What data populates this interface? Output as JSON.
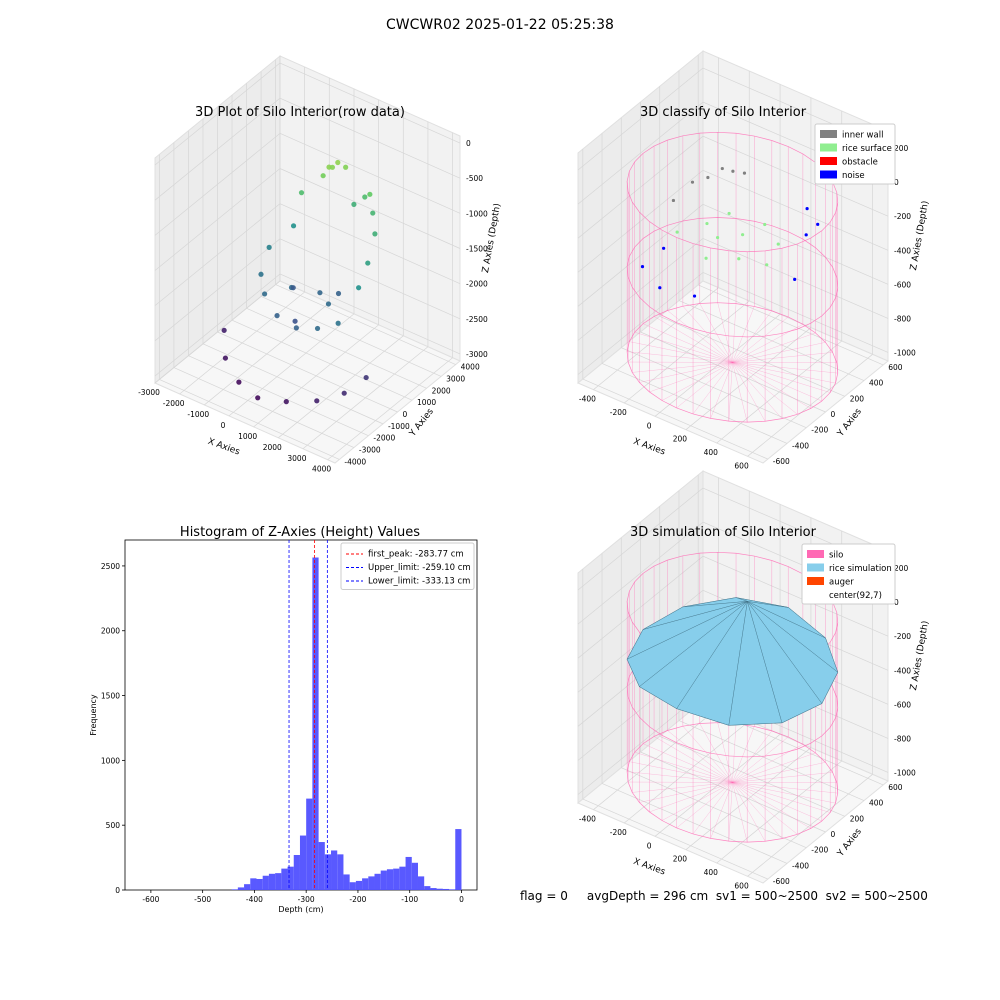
{
  "figure": {
    "suptitle": "CWCWR02 2025-01-22 05:25:38",
    "footer": "flag = 0     avgDepth = 296 cm  sv1 = 500~2500  sv2 = 500~2500"
  },
  "chart_data": [
    {
      "type": "scatter",
      "projection": "3d",
      "title": "3D Plot of Silo Interior(row data)",
      "xlabel": "X Axies",
      "ylabel": "Y Axies",
      "zlabel": "Z Axies (Depth)",
      "xticks": [
        -3000,
        -2000,
        -1000,
        0,
        1000,
        2000,
        3000,
        4000
      ],
      "yticks": [
        -4000,
        -3000,
        -2000,
        -1000,
        0,
        1000,
        2000,
        3000,
        4000
      ],
      "zticks": [
        -3000,
        -2500,
        -2000,
        -1500,
        -1000,
        -500,
        0
      ],
      "xlim": [
        -3000,
        4300
      ],
      "ylim": [
        -4300,
        4300
      ],
      "zlim": [
        -3100,
        100
      ],
      "colormap": "viridis",
      "points": [
        {
          "x": 600,
          "y": 1800,
          "z": -500
        },
        {
          "x": 700,
          "y": 2000,
          "z": -450
        },
        {
          "x": 400,
          "y": 1500,
          "z": -600
        },
        {
          "x": 900,
          "y": 2200,
          "z": -520
        },
        {
          "x": 550,
          "y": 1650,
          "z": -480
        },
        {
          "x": 1500,
          "y": 2500,
          "z": -900
        },
        {
          "x": 2000,
          "y": 2200,
          "z": -1000
        },
        {
          "x": 2500,
          "y": 1500,
          "z": -1100
        },
        {
          "x": 2800,
          "y": 500,
          "z": -1300
        },
        {
          "x": 2900,
          "y": -300,
          "z": -1500
        },
        {
          "x": 1000,
          "y": 2600,
          "z": -1100
        },
        {
          "x": -800,
          "y": 1500,
          "z": -1500
        },
        {
          "x": -1200,
          "y": 500,
          "z": -1700
        },
        {
          "x": -1000,
          "y": -400,
          "z": -1900
        },
        {
          "x": -500,
          "y": -1000,
          "z": -2000
        },
        {
          "x": 300,
          "y": -1500,
          "z": -2100
        },
        {
          "x": 1200,
          "y": -1700,
          "z": -2100
        },
        {
          "x": 2000,
          "y": -1600,
          "z": -2000
        },
        {
          "x": 2600,
          "y": -1200,
          "z": -1900
        },
        {
          "x": 0,
          "y": 0,
          "z": -2000
        },
        {
          "x": 800,
          "y": 600,
          "z": -2050
        },
        {
          "x": 1500,
          "y": 0,
          "z": -2000
        },
        {
          "x": -400,
          "y": 800,
          "z": -2200
        },
        {
          "x": 500,
          "y": -600,
          "z": -2300
        },
        {
          "x": 1200,
          "y": 1200,
          "z": -2100
        },
        {
          "x": -1500,
          "y": -2000,
          "z": -2900
        },
        {
          "x": -600,
          "y": -2600,
          "z": -3000
        },
        {
          "x": 400,
          "y": -3000,
          "z": -3000
        },
        {
          "x": 1500,
          "y": -2900,
          "z": -2900
        },
        {
          "x": 2500,
          "y": -2500,
          "z": -2800
        },
        {
          "x": 3200,
          "y": -1800,
          "z": -2700
        },
        {
          "x": 3500,
          "y": -800,
          "z": -2600
        },
        {
          "x": -2200,
          "y": -900,
          "z": -2800
        },
        {
          "x": 2000,
          "y": 2000,
          "z": -700
        },
        {
          "x": -300,
          "y": 1200,
          "z": -900
        }
      ]
    },
    {
      "type": "scatter",
      "projection": "3d",
      "title": "3D classify of Silo Interior",
      "xlabel": "X Axies",
      "ylabel": "Y Axies",
      "zlabel": "Z Axies (Depth)",
      "xticks": [
        -400,
        -200,
        0,
        200,
        400,
        600
      ],
      "yticks": [
        -600,
        -400,
        -200,
        0,
        200,
        400,
        600
      ],
      "zticks": [
        -1000,
        -800,
        -600,
        -400,
        -200,
        0,
        200
      ],
      "xlim": [
        -500,
        700
      ],
      "ylim": [
        -650,
        650
      ],
      "zlim": [
        -1050,
        300
      ],
      "legend_position": "top-right",
      "series": [
        {
          "name": "inner wall",
          "color": "#808080",
          "points": [
            {
              "x": -350,
              "y": 300,
              "z": -250
            },
            {
              "x": -250,
              "y": 450,
              "z": -200
            },
            {
              "x": -150,
              "y": 520,
              "z": -220
            },
            {
              "x": -380,
              "y": 150,
              "z": -300
            },
            {
              "x": -300,
              "y": 380,
              "z": -240
            },
            {
              "x": -200,
              "y": 480,
              "z": -210
            }
          ]
        },
        {
          "name": "rice surface",
          "color": "#90ee90",
          "points": [
            {
              "x": 0,
              "y": 0,
              "z": -300
            },
            {
              "x": 100,
              "y": 100,
              "z": -290
            },
            {
              "x": -100,
              "y": 50,
              "z": -280
            },
            {
              "x": 200,
              "y": -100,
              "z": -300
            },
            {
              "x": 50,
              "y": -200,
              "z": -310
            },
            {
              "x": 300,
              "y": 150,
              "z": -290
            },
            {
              "x": -200,
              "y": -100,
              "z": -300
            },
            {
              "x": 150,
              "y": 250,
              "z": -280
            },
            {
              "x": 350,
              "y": -50,
              "z": -300
            },
            {
              "x": -50,
              "y": 200,
              "z": -270
            }
          ]
        },
        {
          "name": "obstacle",
          "color": "#ff0000",
          "points": []
        },
        {
          "name": "noise",
          "color": "#0000ff",
          "points": [
            {
              "x": -300,
              "y": -300,
              "z": -450
            },
            {
              "x": 400,
              "y": 400,
              "z": -250
            },
            {
              "x": -350,
              "y": 0,
              "z": -500
            },
            {
              "x": 450,
              "y": 200,
              "z": -200
            },
            {
              "x": 100,
              "y": -400,
              "z": -420
            },
            {
              "x": 300,
              "y": 450,
              "z": -220
            },
            {
              "x": -250,
              "y": -200,
              "z": -600
            },
            {
              "x": 500,
              "y": 0,
              "z": -350
            }
          ]
        }
      ],
      "cylinder": {
        "center": [
          92,
          7
        ],
        "radius": 580,
        "zmin": -1000,
        "zmax": 0,
        "color": "#ff69b4"
      }
    },
    {
      "type": "histogram",
      "title": "Histogram of Z-Axies (Height) Values",
      "xlabel": "Depth (cm)",
      "ylabel": "Frequency",
      "xlim": [
        -650,
        30
      ],
      "ylim": [
        0,
        2700
      ],
      "xticks": [
        -600,
        -500,
        -400,
        -300,
        -200,
        -100,
        0
      ],
      "yticks": [
        0,
        500,
        1000,
        1500,
        2000,
        2500
      ],
      "bin_width": 12,
      "bar_color": "#5050ff",
      "bins": [
        {
          "x": -438,
          "count": 5
        },
        {
          "x": -426,
          "count": 20
        },
        {
          "x": -414,
          "count": 45
        },
        {
          "x": -402,
          "count": 90
        },
        {
          "x": -390,
          "count": 85
        },
        {
          "x": -378,
          "count": 110
        },
        {
          "x": -366,
          "count": 125
        },
        {
          "x": -354,
          "count": 130
        },
        {
          "x": -342,
          "count": 165
        },
        {
          "x": -330,
          "count": 180
        },
        {
          "x": -318,
          "count": 270
        },
        {
          "x": -306,
          "count": 420
        },
        {
          "x": -294,
          "count": 705
        },
        {
          "x": -282,
          "count": 2565
        },
        {
          "x": -270,
          "count": 370
        },
        {
          "x": -258,
          "count": 275
        },
        {
          "x": -246,
          "count": 305
        },
        {
          "x": -234,
          "count": 275
        },
        {
          "x": -222,
          "count": 120
        },
        {
          "x": -210,
          "count": 60
        },
        {
          "x": -198,
          "count": 70
        },
        {
          "x": -186,
          "count": 90
        },
        {
          "x": -174,
          "count": 105
        },
        {
          "x": -162,
          "count": 125
        },
        {
          "x": -150,
          "count": 150
        },
        {
          "x": -138,
          "count": 160
        },
        {
          "x": -126,
          "count": 165
        },
        {
          "x": -114,
          "count": 180
        },
        {
          "x": -102,
          "count": 255
        },
        {
          "x": -90,
          "count": 210
        },
        {
          "x": -78,
          "count": 105
        },
        {
          "x": -66,
          "count": 30
        },
        {
          "x": -54,
          "count": 15
        },
        {
          "x": -42,
          "count": 10
        },
        {
          "x": -30,
          "count": 8
        },
        {
          "x": -18,
          "count": 5
        },
        {
          "x": -6,
          "count": 470
        }
      ],
      "reference_lines": [
        {
          "label": "first_peak: -283.77 cm",
          "x": -283.77,
          "color": "#ff0000"
        },
        {
          "label": "Upper_limit: -259.10 cm",
          "x": -259.1,
          "color": "#0000ff"
        },
        {
          "label": "Lower_limit: -333.13 cm",
          "x": -333.13,
          "color": "#0000ff"
        }
      ],
      "legend_position": "top-right"
    },
    {
      "type": "surface",
      "projection": "3d",
      "title": "3D simulation of Silo Interior",
      "xlabel": "X Axies",
      "ylabel": "Y Axies",
      "zlabel": "Z Axies (Depth)",
      "xticks": [
        -400,
        -200,
        0,
        200,
        400,
        600
      ],
      "yticks": [
        -600,
        -400,
        -200,
        0,
        200,
        400,
        600
      ],
      "zticks": [
        -1000,
        -800,
        -600,
        -400,
        -200,
        0,
        200
      ],
      "xlim": [
        -500,
        700
      ],
      "ylim": [
        -650,
        650
      ],
      "zlim": [
        -1050,
        300
      ],
      "legend_position": "top-right",
      "series": [
        {
          "name": "silo",
          "color": "#ff69b4"
        },
        {
          "name": "rice simulation",
          "color": "#87ceeb"
        },
        {
          "name": "auger",
          "color": "#ff4500"
        },
        {
          "name": "center(92,7)",
          "color": "#ffffff"
        }
      ],
      "surface_profile": [
        {
          "angle_deg": 0,
          "z": -310
        },
        {
          "angle_deg": 30,
          "z": -290
        },
        {
          "angle_deg": 60,
          "z": -270
        },
        {
          "angle_deg": 90,
          "z": -240
        },
        {
          "angle_deg": 120,
          "z": -260
        },
        {
          "angle_deg": 150,
          "z": -300
        },
        {
          "angle_deg": 180,
          "z": -330
        },
        {
          "angle_deg": 210,
          "z": -340
        },
        {
          "angle_deg": 240,
          "z": -320
        },
        {
          "angle_deg": 270,
          "z": -300
        },
        {
          "angle_deg": 300,
          "z": -320
        },
        {
          "angle_deg": 330,
          "z": -320
        }
      ],
      "peak": {
        "x": 100,
        "y": 150,
        "z": 0
      },
      "cylinder": {
        "center": [
          92,
          7
        ],
        "radius": 580,
        "zmin": -1000,
        "zmax": 0,
        "color": "#ff69b4"
      }
    }
  ]
}
